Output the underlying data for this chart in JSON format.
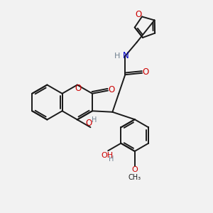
{
  "background_color": "#f2f2f2",
  "bond_color": "#1a1a1a",
  "oxygen_color": "#cc0000",
  "nitrogen_color": "#0000cc",
  "hydrogen_color": "#708090",
  "font_size": 8.5,
  "figsize": [
    3.0,
    3.0
  ],
  "dpi": 100,
  "xlim": [
    0,
    10
  ],
  "ylim": [
    0,
    10
  ]
}
